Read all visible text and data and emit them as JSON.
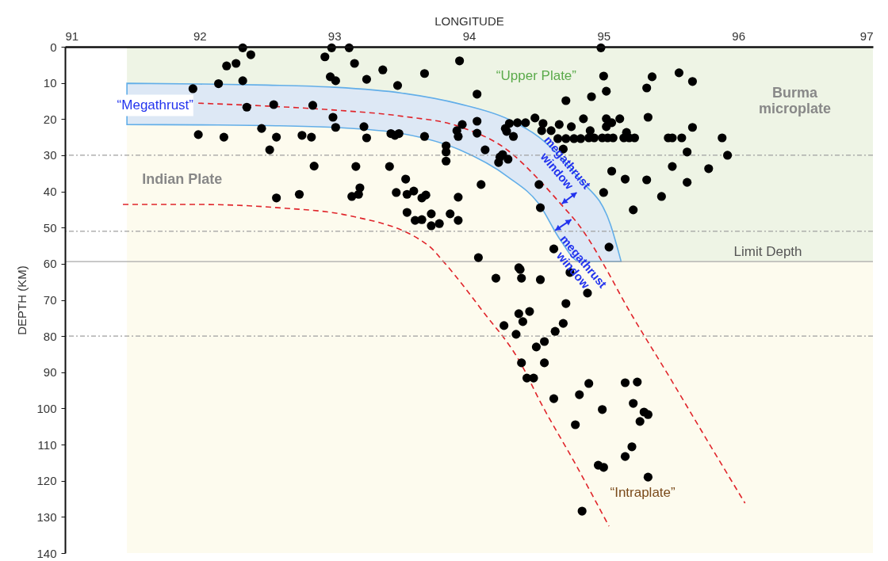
{
  "chart_data": {
    "type": "scatter",
    "xlabel": "LONGITUDE",
    "ylabel": "DEPTH (KM)",
    "xlim": [
      91,
      97
    ],
    "xticks": [
      91,
      92,
      93,
      94,
      95,
      96,
      97
    ],
    "ylim": [
      140,
      0
    ],
    "yticks": [
      0,
      10,
      20,
      30,
      40,
      50,
      60,
      70,
      80,
      90,
      100,
      110,
      120,
      130,
      140
    ],
    "bands": [
      {
        "axis": "x",
        "from": 91.46,
        "to": 97,
        "color": "#fdfbee"
      }
    ],
    "ref_lines": [
      {
        "axis": "y",
        "value": 30,
        "color": "#a0a0a0",
        "line_style": "dotted"
      },
      {
        "axis": "y",
        "value": 51,
        "color": "#a0a0a0",
        "line_style": "dotted"
      },
      {
        "axis": "y",
        "value": 80,
        "color": "#a0a0a0",
        "line_style": "dotted"
      },
      {
        "axis": "y",
        "value": 59.4,
        "label": "Limit Depth",
        "color": "#a8a8a8",
        "line_style": "solid"
      }
    ],
    "series": [
      {
        "type": "area",
        "color": "#eef4e5",
        "x": [
          91.46,
          93.11,
          94.09,
          94.48,
          94.88,
          95.05,
          95.13,
          97
        ],
        "values": [
          10.1,
          11.6,
          17.1,
          23.7,
          39,
          49.1,
          59.4,
          59.4
        ]
      },
      {
        "type": "line",
        "color": "#e0242a",
        "line_style": "dashed",
        "x": [
          91.46,
          91.99,
          92.5,
          93.0,
          93.5,
          93.93,
          94.29,
          94.52,
          94.68,
          94.82,
          95.05,
          95.13,
          95.5,
          95.82,
          96.05
        ],
        "values": [
          null,
          15.6,
          16.4,
          17.5,
          19.2,
          22.1,
          28.7,
          36.8,
          43.4,
          49.5,
          63.5,
          69,
          92,
          112,
          126.2
        ],
        "lower": [
          10.1,
          10.3,
          10.6,
          11.2,
          12.8,
          15.8,
          20,
          25,
          30.5,
          36.5,
          49.1,
          59.4,
          null,
          null,
          null
        ],
        "upper": [
          21.5,
          21.6,
          21.8,
          22.3,
          24,
          28.5,
          36,
          43.5,
          53.5,
          59.4,
          59.4,
          59.4,
          null,
          null,
          null
        ]
      },
      {
        "type": "line",
        "color": "#e0242a",
        "line_style": "dashed",
        "x": [
          91.43,
          91.99,
          92.58,
          93.11,
          93.7,
          93.81,
          94.1,
          94.39,
          94.52,
          94.8,
          95.04
        ],
        "values": [
          43.6,
          43.6,
          44.5,
          46.7,
          55,
          59.4,
          73,
          87.9,
          97.5,
          116,
          132.6
        ]
      },
      {
        "color": "#000000",
        "marker": "circle",
        "x": [
          91.95,
          92.32,
          92.38,
          92.27,
          92.2,
          92.14,
          92.32,
          92.35,
          91.99,
          92.18,
          92.55,
          92.46,
          92.52,
          92.57,
          92.57,
          92.74,
          92.76,
          92.84,
          92.83,
          92.85,
          92.93,
          92.98,
          93.11,
          93.15,
          92.97,
          93.01,
          92.99,
          93.01,
          93.16,
          93.19,
          93.18,
          93.13,
          93.22,
          93.24,
          93.24,
          93.36,
          93.47,
          93.48,
          93.42,
          93.45,
          93.41,
          93.46,
          93.53,
          93.54,
          93.59,
          93.65,
          93.68,
          93.54,
          93.6,
          93.65,
          93.72,
          93.72,
          93.78,
          93.86,
          93.92,
          93.92,
          93.67,
          93.67,
          93.83,
          93.83,
          93.83,
          93.92,
          93.91,
          93.93,
          93.95,
          94.06,
          94.06,
          94.06,
          94.12,
          94.09,
          94.22,
          94.23,
          94.25,
          94.29,
          94.27,
          94.28,
          94.33,
          94.3,
          94.36,
          94.42,
          94.49,
          94.55,
          94.54,
          94.61,
          94.67,
          94.76,
          94.85,
          94.9,
          95.02,
          95.02,
          94.66,
          94.72,
          94.78,
          94.83,
          94.89,
          94.93,
          94.99,
          95.03,
          95.07,
          95.15,
          95.19,
          95.23,
          95.48,
          95.51,
          95.58,
          95.88,
          94.7,
          94.72,
          94.91,
          94.98,
          95.0,
          95.36,
          95.56,
          95.66,
          95.32,
          95.02,
          95.33,
          95.12,
          95.06,
          95.66,
          95.17,
          95.62,
          95.92,
          95.51,
          95.78,
          95.06,
          95.16,
          95.32,
          95.62,
          95.0,
          95.43,
          95.22,
          94.52,
          94.53,
          95.04,
          94.63,
          94.07,
          94.37,
          94.38,
          94.2,
          94.39,
          94.53,
          94.75,
          94.88,
          94.72,
          94.37,
          94.45,
          94.4,
          94.26,
          94.7,
          94.64,
          94.35,
          94.56,
          94.5,
          94.39,
          94.56,
          94.43,
          94.48,
          94.89,
          95.16,
          95.25,
          94.63,
          94.82,
          94.99,
          95.22,
          95.3,
          95.33,
          95.27,
          94.79,
          95.21,
          95.16,
          94.96,
          95.0,
          95.33,
          94.84
        ],
        "values": [
          11.6,
          0.3,
          2.2,
          4.6,
          5.3,
          10.2,
          9.4,
          16.7,
          24.3,
          25,
          16,
          22.6,
          28.5,
          25,
          41.8,
          40.8,
          24.5,
          16.2,
          25,
          33,
          2.8,
          0.3,
          0.3,
          4.6,
          8.3,
          9.4,
          19.5,
          22.3,
          33.1,
          39,
          40.8,
          41.4,
          22.1,
          9,
          25.2,
          6.4,
          10.7,
          24,
          24,
          24.5,
          33.1,
          40.3,
          36.6,
          40.8,
          39.9,
          41.8,
          41,
          45.8,
          48,
          47.8,
          46.2,
          49.5,
          48.9,
          46.2,
          48,
          41.6,
          7.4,
          24.8,
          27.4,
          29.1,
          31.6,
          24.8,
          23.2,
          3.9,
          21.5,
          23.9,
          13.1,
          20.6,
          28.5,
          38.1,
          32,
          30.5,
          29.8,
          31.1,
          22.6,
          23.4,
          24.8,
          21.2,
          21,
          21,
          19.7,
          21.2,
          23.2,
          23.2,
          21.5,
          22.1,
          19.9,
          23.2,
          19.9,
          22.1,
          25.4,
          25.4,
          25.4,
          25.4,
          25.2,
          25.2,
          25.2,
          25.2,
          25.2,
          25.2,
          25.2,
          25.2,
          25.2,
          25.2,
          25.2,
          25.2,
          28.3,
          14.9,
          13.8,
          0.3,
          8.1,
          8.3,
          7.2,
          9.6,
          11.4,
          12.3,
          19.5,
          19.9,
          21,
          22.3,
          23.7,
          29.1,
          30,
          33.1,
          33.7,
          34.4,
          36.6,
          36.8,
          37.5,
          40.3,
          41.4,
          45.1,
          38.1,
          44.5,
          55.4,
          55.9,
          58.3,
          61.1,
          61.6,
          64,
          64,
          64.4,
          62.4,
          68.1,
          71,
          73.8,
          73.2,
          76,
          77.1,
          76.5,
          78.7,
          79.5,
          81.5,
          83,
          87.4,
          87.4,
          91.6,
          91.6,
          93.1,
          92.9,
          92.7,
          97.3,
          96.2,
          100.3,
          98.6,
          101,
          101.7,
          103.6,
          104.5,
          110.6,
          113.3,
          115.7,
          116.3,
          119,
          128.4
        ]
      }
    ],
    "annotations": [
      "“Megathrust”",
      "“Upper Plate”",
      "Burma microplate",
      "Indian Plate",
      "megathrust window",
      "megathrust window",
      "“Intraplate”"
    ]
  }
}
